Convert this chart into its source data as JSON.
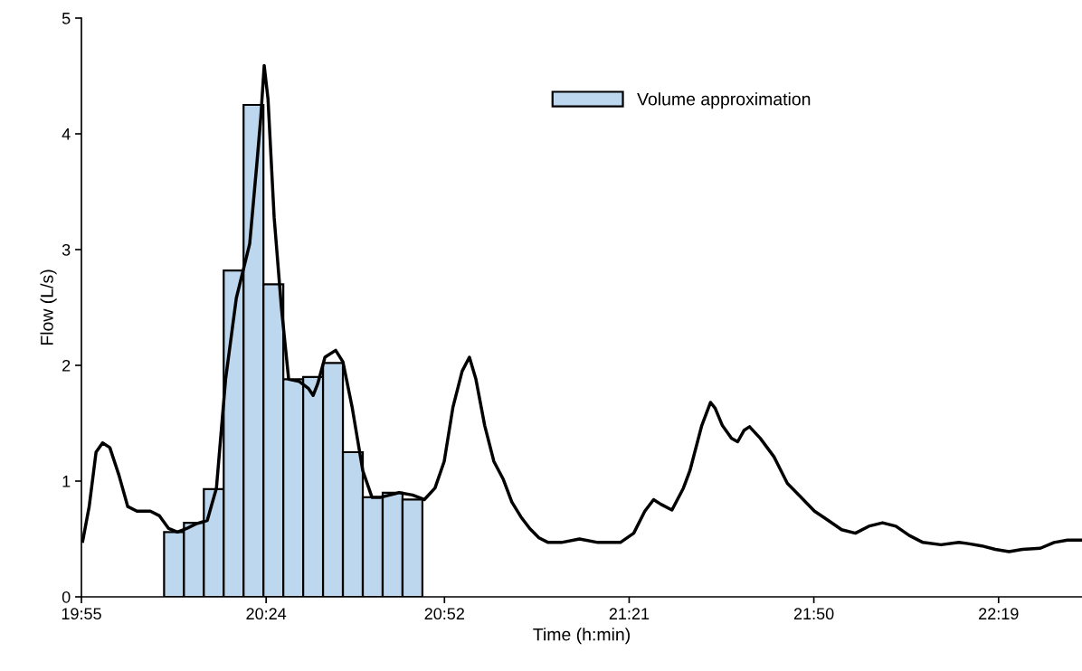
{
  "chart_data": {
    "type": "line",
    "xlabel": "Time (h:min)",
    "ylabel": "Flow (L/s)",
    "xlim": [
      19.9167,
      22.535
    ],
    "ylim": [
      0,
      5
    ],
    "xticks": [
      {
        "value": 19.9167,
        "label": "19:55"
      },
      {
        "value": 20.4,
        "label": "20:24"
      },
      {
        "value": 20.8667,
        "label": "20:52"
      },
      {
        "value": 21.35,
        "label": "21:21"
      },
      {
        "value": 21.8333,
        "label": "21:50"
      },
      {
        "value": 22.3167,
        "label": "22:19"
      }
    ],
    "yticks": [
      0,
      1,
      2,
      3,
      4,
      5
    ],
    "grid": false,
    "legend": "top",
    "marker": "none",
    "line_style": "solid",
    "series": [
      {
        "type": "histogram",
        "name": "Volume approximation",
        "color": "#bdd7ee",
        "bins": [
          20.133,
          20.185,
          20.237,
          20.289,
          20.341,
          20.393,
          20.445,
          20.497,
          20.549,
          20.601,
          20.653,
          20.705,
          20.757,
          20.809
        ],
        "values": [
          0.56,
          0.64,
          0.93,
          2.82,
          4.25,
          2.7,
          1.88,
          1.9,
          2.02,
          1.25,
          0.86,
          0.9,
          0.84
        ]
      },
      {
        "color": "#000000",
        "x": [
          19.92,
          19.937,
          19.955,
          19.972,
          19.991,
          20.015,
          20.038,
          20.062,
          20.097,
          20.121,
          20.145,
          20.168,
          20.192,
          20.216,
          20.246,
          20.27,
          20.294,
          20.322,
          20.357,
          20.376,
          20.386,
          20.395,
          20.405,
          20.421,
          20.44,
          20.459,
          20.487,
          20.511,
          20.523,
          20.535,
          20.554,
          20.582,
          20.601,
          20.625,
          20.653,
          20.677,
          20.7,
          20.724,
          20.748,
          20.783,
          20.814,
          20.842,
          20.866,
          20.889,
          20.913,
          20.932,
          20.949,
          20.972,
          20.996,
          21.02,
          21.043,
          21.067,
          21.09,
          21.114,
          21.138,
          21.173,
          21.22,
          21.268,
          21.327,
          21.362,
          21.391,
          21.414,
          21.433,
          21.462,
          21.492,
          21.509,
          21.54,
          21.563,
          21.575,
          21.594,
          21.618,
          21.634,
          21.651,
          21.665,
          21.693,
          21.729,
          21.764,
          21.8,
          21.835,
          21.871,
          21.906,
          21.942,
          21.977,
          22.013,
          22.048,
          22.083,
          22.119,
          22.166,
          22.213,
          22.237,
          22.273,
          22.308,
          22.344,
          22.379,
          22.426,
          22.462,
          22.497,
          22.535
        ],
        "values": [
          0.48,
          0.78,
          1.25,
          1.33,
          1.29,
          1.05,
          0.78,
          0.74,
          0.74,
          0.7,
          0.59,
          0.56,
          0.59,
          0.63,
          0.66,
          0.94,
          1.88,
          2.58,
          3.05,
          3.75,
          4.14,
          4.59,
          4.3,
          3.28,
          2.5,
          1.88,
          1.86,
          1.8,
          1.74,
          1.84,
          2.07,
          2.13,
          2.03,
          1.64,
          1.09,
          0.86,
          0.86,
          0.88,
          0.9,
          0.88,
          0.84,
          0.94,
          1.17,
          1.64,
          1.95,
          2.07,
          1.88,
          1.48,
          1.17,
          1.02,
          0.82,
          0.69,
          0.59,
          0.51,
          0.47,
          0.47,
          0.5,
          0.47,
          0.47,
          0.55,
          0.74,
          0.84,
          0.8,
          0.75,
          0.94,
          1.09,
          1.48,
          1.68,
          1.63,
          1.48,
          1.37,
          1.34,
          1.44,
          1.47,
          1.37,
          1.21,
          0.98,
          0.86,
          0.74,
          0.66,
          0.58,
          0.55,
          0.61,
          0.64,
          0.61,
          0.53,
          0.47,
          0.45,
          0.47,
          0.46,
          0.44,
          0.41,
          0.39,
          0.41,
          0.42,
          0.47,
          0.49,
          0.49
        ]
      }
    ]
  }
}
